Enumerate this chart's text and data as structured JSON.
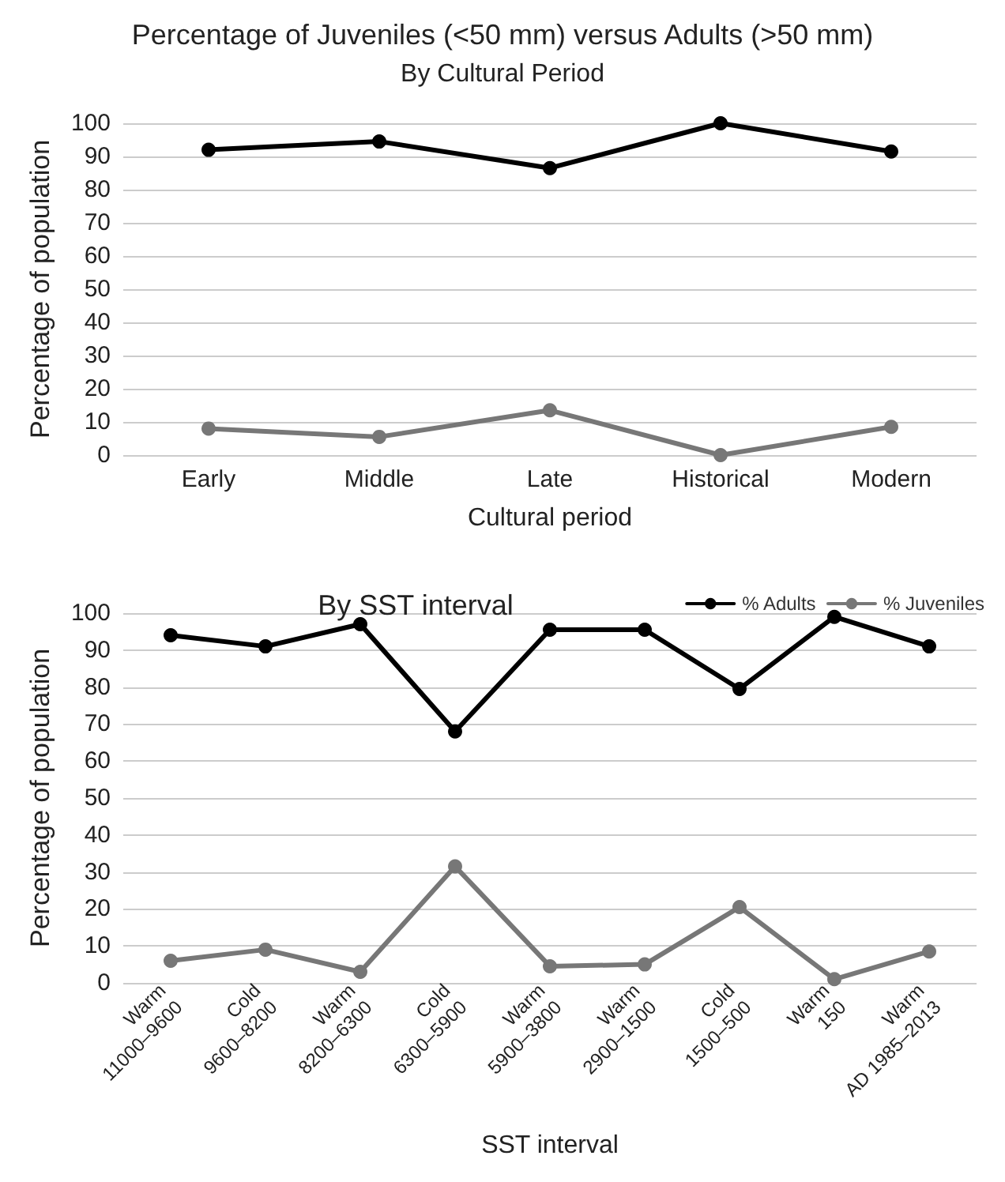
{
  "chart_data": [
    {
      "type": "line",
      "title": "Percentage of Juveniles (<50 mm) versus Adults (>50 mm)",
      "subtitle": "By Cultural Period",
      "xlabel": "Cultural period",
      "ylabel": "Percentage of population",
      "categories": [
        "Early",
        "Middle",
        "Late",
        "Historical",
        "Modern"
      ],
      "series": [
        {
          "color": "#000000",
          "values": [
            92,
            94.5,
            86.5,
            100,
            91.5
          ]
        },
        {
          "color": "#777777",
          "values": [
            8,
            5.5,
            13.5,
            0,
            8.5
          ]
        }
      ],
      "ylim": [
        0,
        100
      ],
      "yticks": [
        0,
        10,
        20,
        30,
        40,
        50,
        60,
        70,
        80,
        90,
        100
      ],
      "grid": "y",
      "marker": "circle",
      "line_style": "solid"
    },
    {
      "type": "line",
      "title": "By SST interval",
      "xlabel": "SST interval",
      "ylabel": "Percentage of population",
      "categories": [
        "Warm\n11000–9600",
        "Cold\n9600–8200",
        "Warm\n8200–6300",
        "Cold\n6300–5900",
        "Warm\n5900–3800",
        "Warm\n2900–1500",
        "Cold\n1500–500",
        "Warm\n150",
        "Warm\nAD 1985–2013"
      ],
      "series": [
        {
          "name": "% Adults",
          "color": "#000000",
          "values": [
            94,
            91,
            97,
            68,
            95.5,
            95.5,
            79.5,
            99,
            91
          ]
        },
        {
          "name": "% Juveniles",
          "color": "#777777",
          "values": [
            6,
            9,
            3,
            31.5,
            4.5,
            5,
            20.5,
            1,
            8.5
          ]
        }
      ],
      "ylim": [
        0,
        100
      ],
      "yticks": [
        0,
        10,
        20,
        30,
        40,
        50,
        60,
        70,
        80,
        90,
        100
      ],
      "grid": "y",
      "legend": "top right",
      "marker": "circle",
      "line_style": "solid"
    }
  ]
}
